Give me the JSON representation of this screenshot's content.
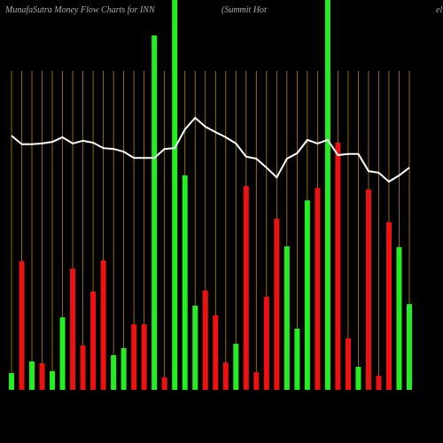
{
  "chart_data": {
    "type": "bar",
    "title": "MunafaSutra  Money Flow  Charts for INN",
    "subtitle": "(Summit Hot",
    "subtitle_tail": "el",
    "categories": [
      null,
      null,
      null,
      null,
      null,
      null,
      null,
      null,
      null,
      null,
      null,
      null,
      null,
      null,
      null,
      null,
      null,
      null,
      null,
      null,
      null,
      null,
      null,
      null,
      null,
      null,
      null,
      null,
      null,
      null,
      null,
      null,
      null,
      null,
      null,
      null,
      null,
      null,
      null,
      null
    ],
    "values": [
      4.3,
      33.0,
      7.3,
      6.8,
      4.8,
      18.6,
      31.1,
      11.4,
      25.2,
      33.2,
      8.9,
      10.7,
      16.8,
      16.8,
      90.9,
      3.2,
      100,
      55.0,
      21.6,
      25.5,
      19.1,
      7.0,
      11.8,
      52.3,
      4.5,
      23.9,
      43.9,
      36.8,
      15.7,
      48.6,
      51.8,
      100,
      63.4,
      13.2,
      5.9,
      51.4,
      3.6,
      43.0,
      36.6,
      22.0
    ],
    "colors": [
      "#22ee22",
      "#ee1111",
      "#22ee22",
      "#ee1111",
      "#22ee22",
      "#22ee22",
      "#ee1111",
      "#ee1111",
      "#ee1111",
      "#ee1111",
      "#22ee22",
      "#22ee22",
      "#ee1111",
      "#ee1111",
      "#22ee22",
      "#ee1111",
      "#22ee22",
      "#22ee22",
      "#22ee22",
      "#ee1111",
      "#ee1111",
      "#ee1111",
      "#22ee22",
      "#ee1111",
      "#ee1111",
      "#ee1111",
      "#ee1111",
      "#22ee22",
      "#22ee22",
      "#22ee22",
      "#ee1111",
      "#22ee22",
      "#ee1111",
      "#ee1111",
      "#22ee22",
      "#ee1111",
      "#ee1111",
      "#ee1111",
      "#22ee22",
      "#22ee22"
    ],
    "line": {
      "color": "#ffffff",
      "values": [
        65.2,
        63.0,
        63.0,
        63.2,
        63.6,
        64.8,
        63.2,
        63.9,
        63.4,
        62.0,
        61.8,
        61.1,
        59.5,
        59.5,
        59.5,
        61.8,
        62.0,
        66.8,
        69.8,
        67.5,
        66.1,
        64.8,
        63.2,
        59.8,
        59.3,
        57.0,
        54.5,
        59.3,
        60.7,
        64.1,
        63.2,
        64.1,
        60.2,
        60.5,
        60.5,
        56.1,
        55.7,
        53.4,
        55.0,
        57.0
      ]
    },
    "ylim": [
      0,
      100
    ]
  }
}
